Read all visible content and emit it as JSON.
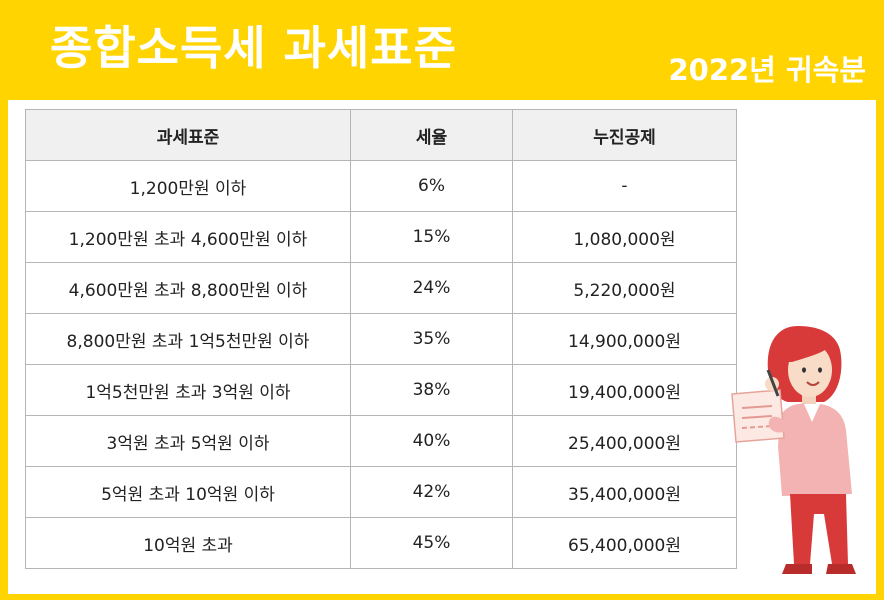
{
  "header": {
    "title": "종합소득세 과세표준",
    "subtitle": "2022년 귀속분"
  },
  "table": {
    "columns": [
      "과세표준",
      "세율",
      "누진공제"
    ],
    "rows": [
      [
        "1,200만원 이하",
        "6%",
        "-"
      ],
      [
        "1,200만원 초과 4,600만원 이하",
        "15%",
        "1,080,000원"
      ],
      [
        "4,600만원 초과 8,800만원 이하",
        "24%",
        "5,220,000원"
      ],
      [
        "8,800만원 초과 1억5천만원 이하",
        "35%",
        "14,900,000원"
      ],
      [
        "1억5천만원 초과 3억원 이하",
        "38%",
        "19,400,000원"
      ],
      [
        "3억원 초과 5억원 이하",
        "40%",
        "25,400,000원"
      ],
      [
        "5억원 초과 10억원 이하",
        "42%",
        "35,400,000원"
      ],
      [
        "10억원 초과",
        "45%",
        "65,400,000원"
      ]
    ]
  },
  "colors": {
    "background": "#ffd400",
    "header_text": "#ffffff",
    "table_header_bg": "#f0f0f0",
    "illustration_red": "#d83a3a"
  }
}
